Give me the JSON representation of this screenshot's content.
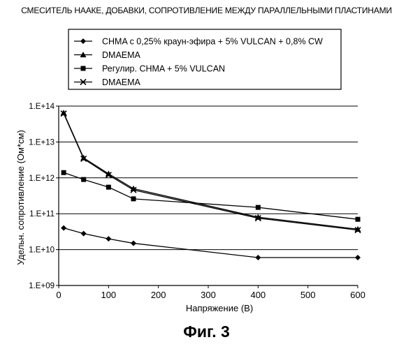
{
  "title": "СМЕСИТЕЛЬ НААКЕ, ДОБАВКИ, СОПРОТИВЛЕНИЕ МЕЖДУ ПАРАЛЛЕЛЬНЫМИ ПЛАСТИНАМИ",
  "caption": "Фиг. 3",
  "colors": {
    "line": "#000000",
    "grid": "#000000",
    "background": "#ffffff"
  },
  "chart_data": {
    "type": "line",
    "title": "СМЕСИТЕЛЬ НААКЕ, ДОБАВКИ, СОПРОТИВЛЕНИЕ МЕЖДУ ПАРАЛЛЕЛЬНЫМИ ПЛАСТИНАМИ",
    "xlabel": "Напряжение (В)",
    "ylabel": "Удельн. сопротивление (Ом*см)",
    "xlim": [
      0,
      600
    ],
    "ylim": [
      1000000000.0,
      100000000000000.0
    ],
    "yscale": "log",
    "xticks": [
      "0",
      "100",
      "200",
      "300",
      "400",
      "500",
      "600"
    ],
    "yticks": [
      "1.E+09",
      "1.E+10",
      "1.E+11",
      "1.E+12",
      "1.E+13",
      "1.E+14"
    ],
    "grid": "horizontal",
    "legend_position": "top",
    "series": [
      {
        "name": "CHMA с 0,25% краун-эфира + 5% VULCAN + 0,8% CW",
        "marker": "diamond",
        "x": [
          10,
          50,
          100,
          150,
          400,
          600
        ],
        "y": [
          40000000000.0,
          28000000000.0,
          20000000000.0,
          15000000000.0,
          6000000000.0,
          6000000000.0
        ]
      },
      {
        "name": "DMAEMA",
        "marker": "triangle",
        "x": [
          10,
          50,
          100,
          150,
          400,
          600
        ],
        "y": [
          65000000000000.0,
          3600000000000.0,
          1300000000000.0,
          500000000000.0,
          80000000000.0,
          37000000000.0
        ]
      },
      {
        "name": "Регулир. CHMA + 5% VULCAN",
        "marker": "square",
        "x": [
          10,
          50,
          100,
          150,
          400,
          600
        ],
        "y": [
          1400000000000.0,
          900000000000.0,
          550000000000.0,
          260000000000.0,
          150000000000.0,
          70000000000.0
        ]
      },
      {
        "name": "DMAEMA",
        "marker": "x",
        "x": [
          10,
          50,
          100,
          150,
          400,
          600
        ],
        "y": [
          62000000000000.0,
          3400000000000.0,
          1200000000000.0,
          460000000000.0,
          75000000000.0,
          35000000000.0
        ]
      }
    ]
  }
}
